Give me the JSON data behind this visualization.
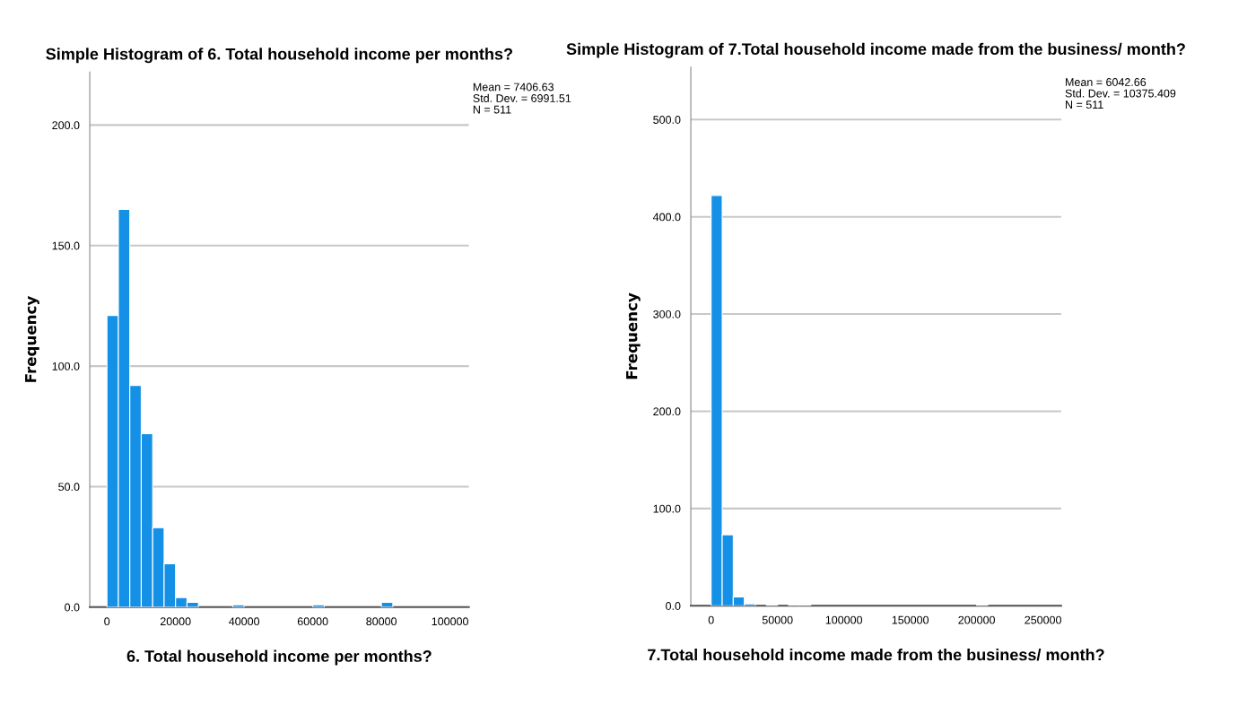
{
  "chart_data": [
    {
      "type": "histogram",
      "title": "Simple Histogram of 6. Total household income per months?",
      "xlabel": "6. Total household income per months?",
      "ylabel": "Frequency",
      "bins": [
        0,
        3333.33,
        6666.67,
        10000,
        13333.33,
        16666.67,
        20000,
        23333.33,
        26666.67,
        30000,
        33333.33,
        36666.67,
        40000,
        43333.33,
        46666.67,
        50000,
        53333.33,
        56666.67,
        60000,
        63333.33,
        66666.67,
        70000,
        73333.33,
        76666.67,
        80000,
        83333.33
      ],
      "values": [
        121,
        165,
        92,
        72,
        33,
        18,
        4,
        2,
        0,
        0,
        0,
        1,
        0,
        0,
        0,
        0,
        0,
        0,
        1,
        0,
        0,
        0,
        0,
        0,
        2
      ],
      "color": "#1490e6",
      "xlim": [
        -5000,
        105500
      ],
      "xticks": [
        0,
        20000,
        40000,
        60000,
        80000,
        100000
      ],
      "ylim": [
        0,
        222
      ],
      "yticks": [
        {
          "value": 0,
          "label": "0.0"
        },
        {
          "value": 50,
          "label": "50.0"
        },
        {
          "value": 100,
          "label": "100.0"
        },
        {
          "value": 150,
          "label": "150.0"
        },
        {
          "value": 200,
          "label": "200.0"
        }
      ],
      "grid": "y",
      "annotations": [
        "Mean = 7406.63\nStd. Dev. = 6991.51\nN = 511"
      ]
    },
    {
      "type": "histogram",
      "title": "Simple Histogram of 7.Total household income made from the business/ month?",
      "xlabel": "7.Total household income made from the business/ month?",
      "ylabel": "Frequency",
      "bins": [
        0,
        8333.33,
        16666.67,
        25000,
        33333.33,
        41666.67,
        50000,
        58333.33,
        66666.67,
        75000,
        83333.33,
        91666.67,
        100000,
        108333.33,
        116666.67,
        125000,
        133333.33,
        141666.67,
        150000,
        158333.33,
        166666.67,
        175000,
        183333.33,
        191666.67,
        200000,
        208333.33
      ],
      "values": [
        422,
        73,
        9,
        2,
        0,
        1,
        0,
        1,
        1,
        0,
        0,
        0,
        0,
        0,
        0,
        0,
        0,
        0,
        0,
        0,
        0,
        0,
        0,
        0,
        1
      ],
      "color": "#1490e6",
      "xlim": [
        -15300,
        263700
      ],
      "xticks": [
        0,
        50000,
        100000,
        150000,
        200000,
        250000
      ],
      "ylim": [
        0,
        554
      ],
      "yticks": [
        {
          "value": 0,
          "label": "0.0"
        },
        {
          "value": 100,
          "label": "100.0"
        },
        {
          "value": 200,
          "label": "200.0"
        },
        {
          "value": 300,
          "label": "300.0"
        },
        {
          "value": 400,
          "label": "400.0"
        },
        {
          "value": 500,
          "label": "500.0"
        }
      ],
      "grid": "y",
      "annotations": [
        "Mean = 6042.66\nStd. Dev. = 10375.409\nN = 511"
      ]
    }
  ]
}
